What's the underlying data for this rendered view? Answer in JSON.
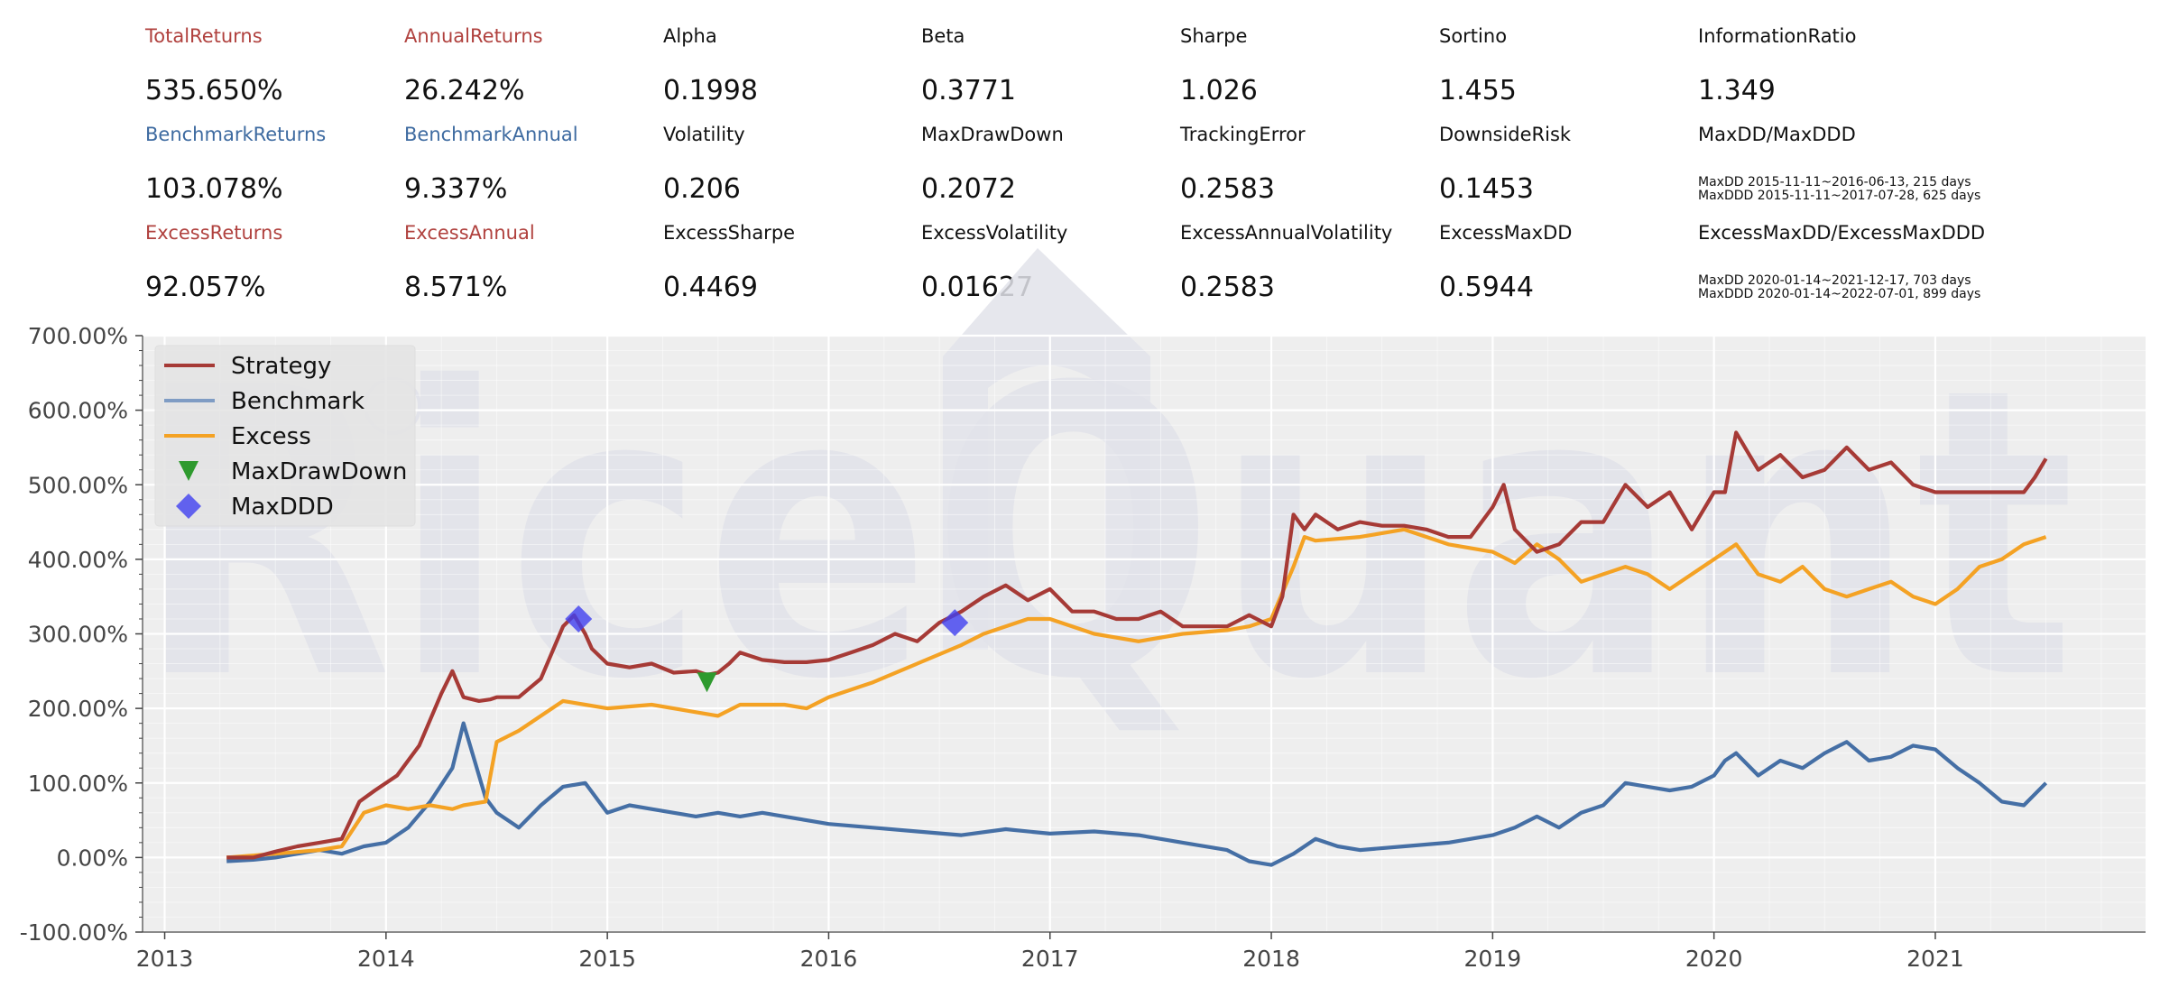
{
  "metrics": [
    [
      {
        "label": "TotalReturns",
        "value": "535.650%",
        "label_color": "red"
      },
      {
        "label": "AnnualReturns",
        "value": "26.242%",
        "label_color": "red"
      },
      {
        "label": "Alpha",
        "value": "0.1998"
      },
      {
        "label": "Beta",
        "value": "0.3771"
      },
      {
        "label": "Sharpe",
        "value": "1.026"
      },
      {
        "label": "Sortino",
        "value": "1.455"
      },
      {
        "label": "InformationRatio",
        "value": "1.349"
      }
    ],
    [
      {
        "label": "BenchmarkReturns",
        "value": "103.078%",
        "label_color": "blue"
      },
      {
        "label": "BenchmarkAnnual",
        "value": "9.337%",
        "label_color": "blue"
      },
      {
        "label": "Volatility",
        "value": "0.206"
      },
      {
        "label": "MaxDrawDown",
        "value": "0.2072"
      },
      {
        "label": "TrackingError",
        "value": "0.2583"
      },
      {
        "label": "DownsideRisk",
        "value": "0.1453"
      },
      {
        "label": "MaxDD/MaxDDD",
        "note1": "MaxDD 2015-11-11~2016-06-13, 215 days",
        "note2": "MaxDDD 2015-11-11~2017-07-28, 625 days"
      }
    ],
    [
      {
        "label": "ExcessReturns",
        "value": "92.057%",
        "label_color": "red"
      },
      {
        "label": "ExcessAnnual",
        "value": "8.571%",
        "label_color": "red"
      },
      {
        "label": "ExcessSharpe",
        "value": "0.4469"
      },
      {
        "label": "ExcessVolatility",
        "value": "0.01627"
      },
      {
        "label": "ExcessAnnualVolatility",
        "value": "0.2583"
      },
      {
        "label": "ExcessMaxDD",
        "value": "0.5944"
      },
      {
        "label": "ExcessMaxDD/ExcessMaxDDD",
        "note1": "MaxDD 2020-01-14~2021-12-17, 703 days",
        "note2": "MaxDDD 2020-01-14~2022-07-01, 899 days"
      }
    ]
  ],
  "colors": {
    "strategy": "#a63a36",
    "strategy_light": "#c08080",
    "benchmark": "#456fa5",
    "excess": "#f4a224",
    "excess_light": "#e8b368",
    "maxdrawdown": "#2e9a2e",
    "maxddd": "#4040f0",
    "plot_bg": "#eeeeee",
    "grid": "#ffffff",
    "label_red": "#b0413e",
    "label_blue": "#3d6aa0"
  },
  "watermark": "RiceQuant",
  "chart_data": {
    "type": "line",
    "xlim": [
      2012.9,
      2021.95
    ],
    "ylim": [
      -100,
      700
    ],
    "y_ticks": [
      -100,
      0,
      100,
      200,
      300,
      400,
      500,
      600,
      700
    ],
    "y_tick_labels": [
      "-100.00%",
      "0.00%",
      "100.00%",
      "200.00%",
      "300.00%",
      "400.00%",
      "500.00%",
      "600.00%",
      "700.00%"
    ],
    "x_ticks": [
      2013,
      2014,
      2015,
      2016,
      2017,
      2018,
      2019,
      2020,
      2021
    ],
    "x_tick_labels": [
      "2013",
      "2014",
      "2015",
      "2016",
      "2017",
      "2018",
      "2019",
      "2020",
      "2021"
    ],
    "grid": true,
    "legend_position": "top-left",
    "legend": [
      "Strategy",
      "Benchmark",
      "Excess",
      "MaxDrawDown",
      "MaxDDD"
    ],
    "series": [
      {
        "name": "Strategy",
        "x": [
          2013.28,
          2013.4,
          2013.5,
          2013.6,
          2013.7,
          2013.8,
          2013.88,
          2013.95,
          2014.05,
          2014.15,
          2014.25,
          2014.3,
          2014.35,
          2014.42,
          2014.47,
          2014.5,
          2014.6,
          2014.7,
          2014.8,
          2014.85,
          2014.88,
          2014.9,
          2014.93,
          2015.0,
          2015.1,
          2015.2,
          2015.3,
          2015.4,
          2015.45,
          2015.5,
          2015.55,
          2015.6,
          2015.7,
          2015.8,
          2015.9,
          2016.0,
          2016.1,
          2016.2,
          2016.3,
          2016.4,
          2016.5,
          2016.6,
          2016.7,
          2016.8,
          2016.9,
          2017.0,
          2017.1,
          2017.2,
          2017.3,
          2017.4,
          2017.5,
          2017.6,
          2017.7,
          2017.8,
          2017.9,
          2018.0,
          2018.05,
          2018.1,
          2018.15,
          2018.2,
          2018.3,
          2018.4,
          2018.5,
          2018.6,
          2018.7,
          2018.8,
          2018.9,
          2019.0,
          2019.05,
          2019.1,
          2019.2,
          2019.3,
          2019.4,
          2019.5,
          2019.6,
          2019.7,
          2019.8,
          2019.9,
          2020.0,
          2020.05,
          2020.1,
          2020.2,
          2020.3,
          2020.4,
          2020.5,
          2020.6,
          2020.7,
          2020.8,
          2020.9,
          2021.0,
          2021.1,
          2021.2,
          2021.3,
          2021.4,
          2021.45,
          2021.5
        ],
        "y": [
          0,
          0,
          8,
          15,
          20,
          25,
          75,
          90,
          110,
          150,
          220,
          250,
          215,
          210,
          212,
          215,
          215,
          240,
          310,
          325,
          310,
          300,
          280,
          260,
          255,
          260,
          248,
          250,
          245,
          248,
          260,
          275,
          265,
          262,
          262,
          265,
          275,
          285,
          300,
          290,
          315,
          330,
          350,
          365,
          345,
          360,
          330,
          330,
          320,
          320,
          330,
          310,
          310,
          310,
          325,
          310,
          350,
          460,
          440,
          460,
          440,
          450,
          445,
          445,
          440,
          430,
          430,
          470,
          500,
          440,
          410,
          420,
          450,
          450,
          500,
          470,
          490,
          440,
          490,
          490,
          570,
          520,
          540,
          510,
          520,
          550,
          520,
          530,
          500,
          490,
          490,
          490,
          490,
          490,
          510,
          535
        ]
      },
      {
        "name": "Benchmark",
        "x": [
          2013.28,
          2013.4,
          2013.5,
          2013.6,
          2013.7,
          2013.8,
          2013.9,
          2014.0,
          2014.1,
          2014.2,
          2014.3,
          2014.35,
          2014.4,
          2014.45,
          2014.5,
          2014.6,
          2014.7,
          2014.8,
          2014.9,
          2015.0,
          2015.1,
          2015.2,
          2015.3,
          2015.4,
          2015.5,
          2015.6,
          2015.7,
          2015.8,
          2015.9,
          2016.0,
          2016.2,
          2016.4,
          2016.6,
          2016.8,
          2017.0,
          2017.2,
          2017.4,
          2017.6,
          2017.8,
          2017.9,
          2018.0,
          2018.1,
          2018.2,
          2018.3,
          2018.4,
          2018.6,
          2018.8,
          2019.0,
          2019.1,
          2019.2,
          2019.3,
          2019.4,
          2019.5,
          2019.6,
          2019.7,
          2019.8,
          2019.9,
          2020.0,
          2020.05,
          2020.1,
          2020.2,
          2020.3,
          2020.4,
          2020.5,
          2020.6,
          2020.7,
          2020.8,
          2020.9,
          2021.0,
          2021.1,
          2021.2,
          2021.3,
          2021.4,
          2021.5
        ],
        "y": [
          -5,
          -3,
          0,
          5,
          10,
          5,
          15,
          20,
          40,
          75,
          120,
          180,
          130,
          80,
          60,
          40,
          70,
          95,
          100,
          60,
          70,
          65,
          60,
          55,
          60,
          55,
          60,
          55,
          50,
          45,
          40,
          35,
          30,
          38,
          32,
          35,
          30,
          20,
          10,
          -5,
          -10,
          5,
          25,
          15,
          10,
          15,
          20,
          30,
          40,
          55,
          40,
          60,
          70,
          100,
          95,
          90,
          95,
          110,
          130,
          140,
          110,
          130,
          120,
          140,
          155,
          130,
          135,
          150,
          145,
          120,
          100,
          75,
          70,
          100
        ]
      },
      {
        "name": "Excess",
        "x": [
          2013.28,
          2013.5,
          2013.7,
          2013.8,
          2013.9,
          2014.0,
          2014.1,
          2014.2,
          2014.3,
          2014.35,
          2014.45,
          2014.5,
          2014.6,
          2014.7,
          2014.8,
          2014.9,
          2015.0,
          2015.2,
          2015.4,
          2015.5,
          2015.6,
          2015.8,
          2015.9,
          2016.0,
          2016.2,
          2016.4,
          2016.6,
          2016.7,
          2016.8,
          2016.9,
          2017.0,
          2017.2,
          2017.4,
          2017.6,
          2017.8,
          2017.9,
          2018.0,
          2018.1,
          2018.15,
          2018.2,
          2018.4,
          2018.6,
          2018.8,
          2019.0,
          2019.1,
          2019.2,
          2019.3,
          2019.4,
          2019.5,
          2019.6,
          2019.7,
          2019.8,
          2019.9,
          2020.0,
          2020.1,
          2020.2,
          2020.3,
          2020.4,
          2020.5,
          2020.6,
          2020.7,
          2020.8,
          2020.9,
          2021.0,
          2021.1,
          2021.2,
          2021.3,
          2021.4,
          2021.5
        ],
        "y": [
          0,
          5,
          10,
          15,
          60,
          70,
          65,
          70,
          65,
          70,
          75,
          155,
          170,
          190,
          210,
          205,
          200,
          205,
          195,
          190,
          205,
          205,
          200,
          215,
          235,
          260,
          285,
          300,
          310,
          320,
          320,
          300,
          290,
          300,
          305,
          310,
          320,
          390,
          430,
          425,
          430,
          440,
          420,
          410,
          395,
          420,
          400,
          370,
          380,
          390,
          380,
          360,
          380,
          400,
          420,
          380,
          370,
          390,
          360,
          350,
          360,
          370,
          350,
          340,
          360,
          390,
          400,
          420,
          430
        ]
      }
    ],
    "markers": [
      {
        "name": "MaxDrawDown",
        "shape": "triangle-down",
        "x": [
          2015.45
        ],
        "y": [
          235
        ]
      },
      {
        "name": "MaxDDD",
        "shape": "diamond",
        "x": [
          2014.87,
          2016.57
        ],
        "y": [
          320,
          315
        ]
      }
    ]
  }
}
